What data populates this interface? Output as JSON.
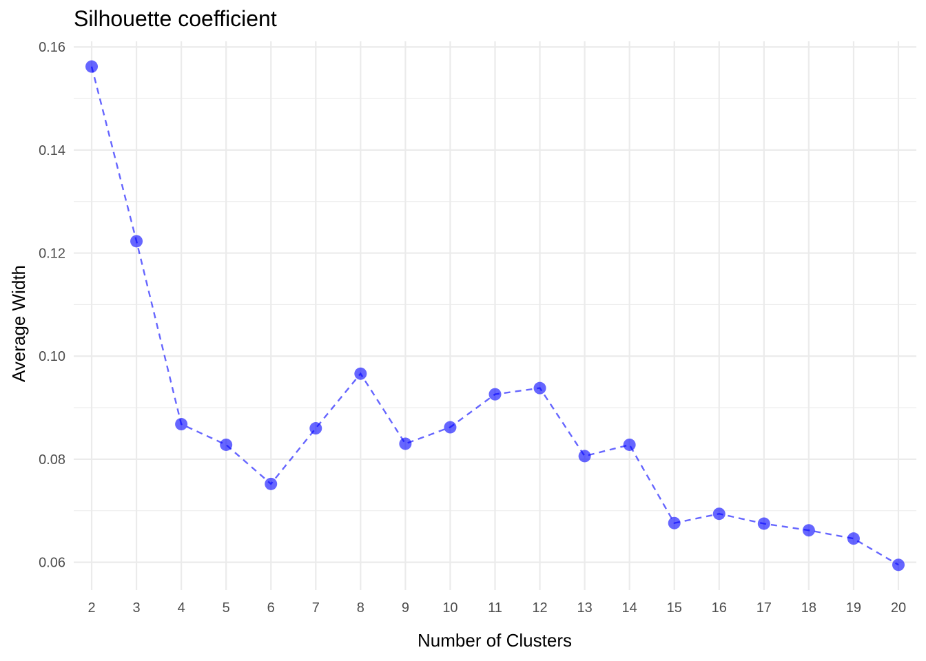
{
  "chart_data": {
    "type": "line",
    "title": "Silhouette coefficient",
    "xlabel": "Number of Clusters",
    "ylabel": "Average Width",
    "x": [
      2,
      3,
      4,
      5,
      6,
      7,
      8,
      9,
      10,
      11,
      12,
      13,
      14,
      15,
      16,
      17,
      18,
      19,
      20
    ],
    "y": [
      0.1562,
      0.1223,
      0.0868,
      0.0828,
      0.0752,
      0.086,
      0.0966,
      0.083,
      0.0862,
      0.0926,
      0.0938,
      0.0806,
      0.0828,
      0.0676,
      0.0694,
      0.0675,
      0.0662,
      0.0646,
      0.0595
    ],
    "xlim": [
      1.6,
      20.4
    ],
    "ylim": [
      0.0546,
      0.1611
    ],
    "y_ticks": [
      0.06,
      0.08,
      0.1,
      0.12,
      0.14,
      0.16
    ],
    "y_tick_labels": [
      "0.06",
      "0.08",
      "0.10",
      "0.12",
      "0.14",
      "0.16"
    ],
    "x_ticks": [
      2,
      3,
      4,
      5,
      6,
      7,
      8,
      9,
      10,
      11,
      12,
      13,
      14,
      15,
      16,
      17,
      18,
      19,
      20
    ],
    "x_tick_labels": [
      "2",
      "3",
      "4",
      "5",
      "6",
      "7",
      "8",
      "9",
      "10",
      "11",
      "12",
      "13",
      "14",
      "15",
      "16",
      "17",
      "18",
      "19",
      "20"
    ],
    "line_style": "dashed",
    "color": "#0000ff",
    "marker_opacity": 0.6,
    "grid": true,
    "theme": "minimal"
  }
}
